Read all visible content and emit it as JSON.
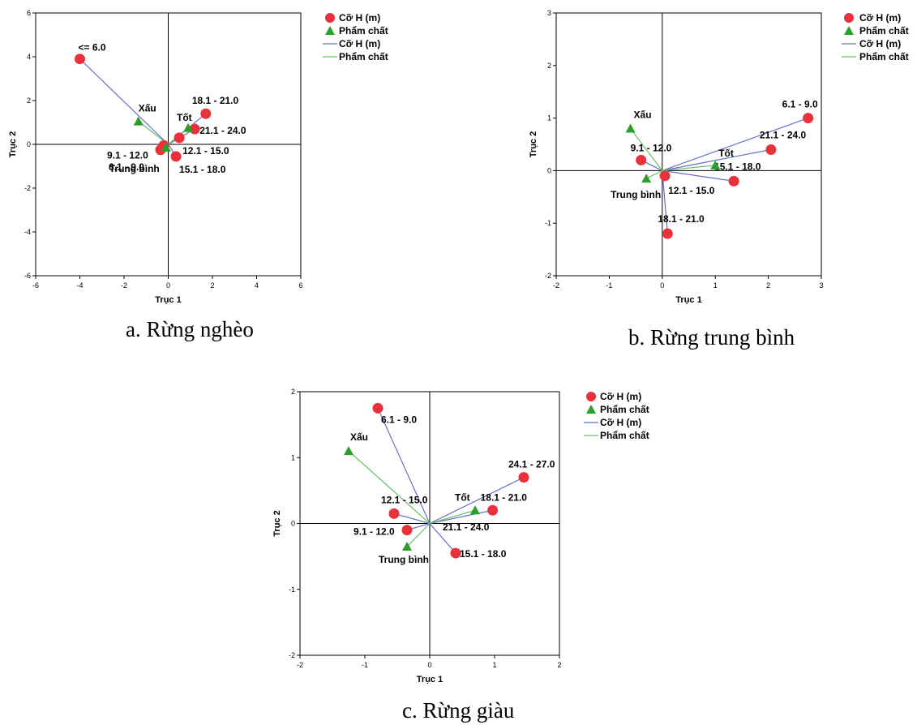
{
  "colors": {
    "circle": "#e8313a",
    "triangle": "#2aa02a",
    "line_circle": "#6670c6",
    "line_triangle": "#66c266"
  },
  "icons": {
    "circle": "red-circle-marker",
    "triangle": "green-triangle-marker"
  },
  "chart_data": [
    {
      "type": "scatter",
      "caption": "a. Rừng nghèo",
      "xlabel": "Trục 1",
      "ylabel": "Trục 2",
      "xlim": [
        -6,
        6
      ],
      "ylim": [
        -6,
        6
      ],
      "xticks": [
        -6,
        -4,
        -2,
        0,
        2,
        4,
        6
      ],
      "yticks": [
        -6,
        -4,
        -2,
        0,
        2,
        4,
        6
      ],
      "legend": [
        "Cỡ H (m)",
        "Phẩm chất",
        "Cỡ H (m)",
        "Phẩm chất"
      ],
      "legend_position": "top-right",
      "series": [
        {
          "name": "Cỡ H (m)",
          "marker": "circle",
          "points": [
            {
              "label": "<= 6.0",
              "x": -4.0,
              "y": 3.9
            },
            {
              "label": "6.1 - 9.0",
              "x": -0.35,
              "y": -0.25
            },
            {
              "label": "9.1 - 12.0",
              "x": -0.2,
              "y": -0.05
            },
            {
              "label": "12.1 - 15.0",
              "x": 0.5,
              "y": 0.3
            },
            {
              "label": "15.1 - 18.0",
              "x": 0.35,
              "y": -0.55
            },
            {
              "label": "18.1 - 21.0",
              "x": 1.7,
              "y": 1.4
            },
            {
              "label": "21.1 - 24.0",
              "x": 1.2,
              "y": 0.7
            }
          ]
        },
        {
          "name": "Phẩm chất",
          "marker": "triangle",
          "points": [
            {
              "label": "Xấu",
              "x": -1.35,
              "y": 1.05
            },
            {
              "label": "Tốt",
              "x": 0.9,
              "y": 0.75
            },
            {
              "label": "Trung bình",
              "x": -0.1,
              "y": -0.15
            }
          ]
        }
      ]
    },
    {
      "type": "scatter",
      "caption": "b. Rừng trung bình",
      "xlabel": "Trục 1",
      "ylabel": "Trục 2",
      "xlim": [
        -2,
        3
      ],
      "ylim": [
        -2,
        3
      ],
      "xticks": [
        -2,
        -1,
        0,
        1,
        2,
        3
      ],
      "yticks": [
        -2,
        -1,
        0,
        1,
        2,
        3
      ],
      "legend": [
        "Cỡ H (m)",
        "Phẩm chất",
        "Cỡ H (m)",
        "Phẩm chất"
      ],
      "legend_position": "top-right",
      "series": [
        {
          "name": "Cỡ H (m)",
          "marker": "circle",
          "points": [
            {
              "label": "6.1 - 9.0",
              "x": 2.75,
              "y": 1.0
            },
            {
              "label": "9.1 - 12.0",
              "x": -0.4,
              "y": 0.2
            },
            {
              "label": "12.1 - 15.0",
              "x": 0.05,
              "y": -0.1
            },
            {
              "label": "15.1 - 18.0",
              "x": 1.35,
              "y": -0.2
            },
            {
              "label": "18.1 - 21.0",
              "x": 0.1,
              "y": -1.2
            },
            {
              "label": "21.1 - 24.0",
              "x": 2.05,
              "y": 0.4
            }
          ]
        },
        {
          "name": "Phẩm chất",
          "marker": "triangle",
          "points": [
            {
              "label": "Xấu",
              "x": -0.6,
              "y": 0.8
            },
            {
              "label": "Tốt",
              "x": 1.0,
              "y": 0.1
            },
            {
              "label": "Trung bình",
              "x": -0.3,
              "y": -0.15
            }
          ]
        }
      ]
    },
    {
      "type": "scatter",
      "caption": "c. Rừng giàu",
      "xlabel": "Trục 1",
      "ylabel": "Trục 2",
      "xlim": [
        -2,
        2
      ],
      "ylim": [
        -2,
        2
      ],
      "xticks": [
        -2,
        -1,
        0,
        1,
        2
      ],
      "yticks": [
        -2,
        -1,
        0,
        1,
        2
      ],
      "legend": [
        "Cỡ H (m)",
        "Phẩm chất",
        "Cỡ H (m)",
        "Phẩm chất"
      ],
      "legend_position": "top-right",
      "series": [
        {
          "name": "Cỡ H (m)",
          "marker": "circle",
          "points": [
            {
              "label": "6.1 - 9.0",
              "x": -0.8,
              "y": 1.75
            },
            {
              "label": "9.1 - 12.0",
              "x": -0.35,
              "y": -0.1
            },
            {
              "label": "12.1 - 15.0",
              "x": -0.55,
              "y": 0.15
            },
            {
              "label": "15.1 - 18.0",
              "x": 0.4,
              "y": -0.45
            },
            {
              "label": "18.1 - 21.0",
              "x": 0.97,
              "y": 0.2
            },
            {
              "label": "24.1 - 27.0",
              "x": 1.45,
              "y": 0.7
            }
          ]
        },
        {
          "name": "Phẩm chất",
          "marker": "triangle",
          "points": [
            {
              "label": "Xấu",
              "x": -1.25,
              "y": 1.1
            },
            {
              "label": "Tốt",
              "x": 0.7,
              "y": 0.2
            },
            {
              "label": "Trung bình",
              "x": -0.35,
              "y": -0.35
            }
          ]
        }
      ],
      "extra_labels": [
        {
          "text": "21.1 - 24.0",
          "near": "15.1 - 18.0"
        }
      ]
    }
  ]
}
